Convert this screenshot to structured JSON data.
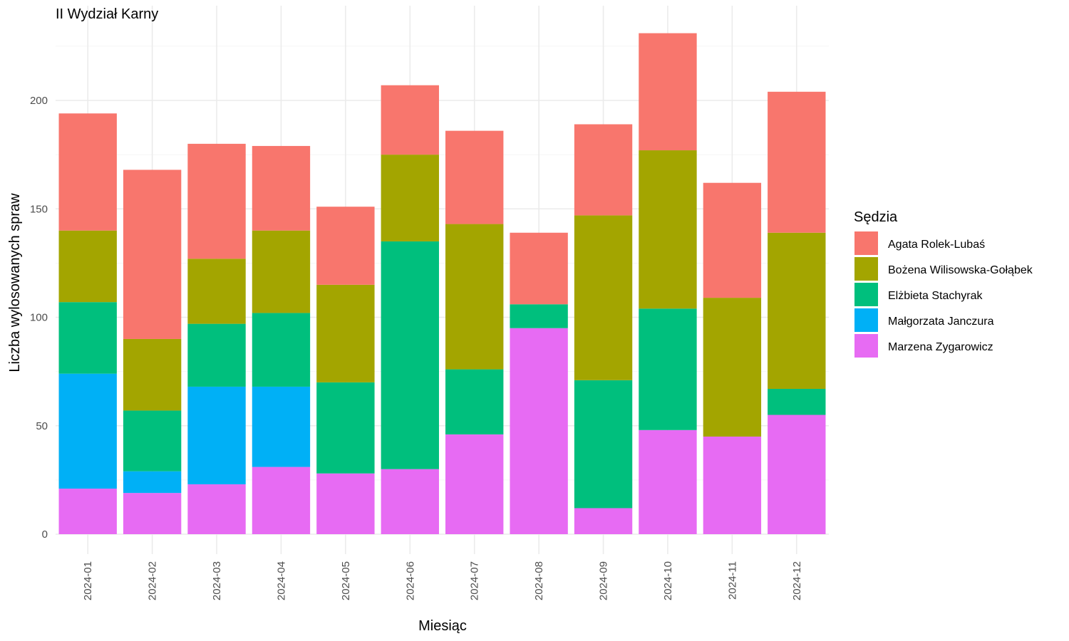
{
  "chart_data": {
    "type": "bar",
    "stacked": true,
    "title": "II Wydział Karny",
    "xlabel": "Miesiąc",
    "ylabel": "Liczba wylosowanych spraw",
    "ylim": [
      0,
      238
    ],
    "yticks": [
      0,
      50,
      100,
      150,
      200
    ],
    "grid": true,
    "legend_position": "right",
    "legend_title": "Sędzia",
    "categories": [
      "2024-01",
      "2024-02",
      "2024-03",
      "2024-04",
      "2024-05",
      "2024-06",
      "2024-07",
      "2024-08",
      "2024-09",
      "2024-10",
      "2024-11",
      "2024-12"
    ],
    "series": [
      {
        "name": "Agata Rolek-Lubaś",
        "color": "#F8766D",
        "values": [
          54,
          78,
          53,
          39,
          36,
          32,
          43,
          33,
          42,
          54,
          53,
          65
        ]
      },
      {
        "name": "Bożena Wilisowska-Gołąbek",
        "color": "#A3A500",
        "values": [
          33,
          33,
          30,
          38,
          45,
          40,
          67,
          0,
          76,
          73,
          64,
          72
        ]
      },
      {
        "name": "Elżbieta Stachyrak",
        "color": "#00BF7D",
        "values": [
          33,
          28,
          29,
          34,
          42,
          105,
          30,
          11,
          59,
          56,
          0,
          12
        ]
      },
      {
        "name": "Małgorzata Janczura",
        "color": "#00B0F6",
        "values": [
          53,
          10,
          45,
          37,
          0,
          0,
          0,
          0,
          0,
          0,
          0,
          0
        ]
      },
      {
        "name": "Marzena Zygarowicz",
        "color": "#E76BF3",
        "values": [
          21,
          19,
          23,
          31,
          28,
          30,
          46,
          95,
          12,
          48,
          45,
          55
        ]
      }
    ]
  }
}
